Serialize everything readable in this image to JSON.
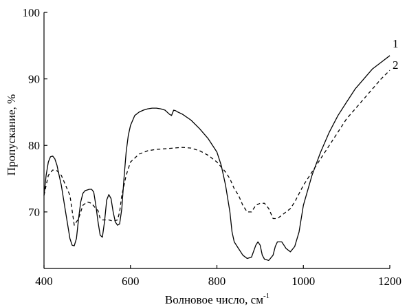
{
  "chart_data": {
    "type": "line",
    "xlabel": "Волновое число, см",
    "xlabel_superscript": "-1",
    "ylabel": "Пропускание, %",
    "xlim": [
      400,
      1200
    ],
    "ylim": [
      61.5,
      100
    ],
    "xticks": [
      400,
      600,
      800,
      1000,
      1200
    ],
    "yticks": [
      70,
      80,
      90,
      100
    ],
    "grid": false,
    "legend": "none",
    "series": [
      {
        "name": "1",
        "style": "solid",
        "color": "#000000",
        "x": [
          400,
          405,
          410,
          415,
          420,
          425,
          430,
          435,
          440,
          450,
          460,
          465,
          470,
          475,
          480,
          485,
          490,
          495,
          500,
          505,
          510,
          515,
          520,
          525,
          530,
          535,
          540,
          545,
          550,
          555,
          560,
          565,
          570,
          575,
          580,
          585,
          590,
          595,
          600,
          610,
          620,
          630,
          640,
          650,
          660,
          670,
          680,
          690,
          695,
          700,
          705,
          710,
          720,
          740,
          760,
          780,
          800,
          810,
          820,
          830,
          835,
          840,
          850,
          860,
          870,
          880,
          890,
          895,
          900,
          905,
          910,
          920,
          930,
          935,
          940,
          950,
          955,
          960,
          970,
          980,
          990,
          1000,
          1020,
          1040,
          1060,
          1080,
          1100,
          1120,
          1140,
          1160,
          1180,
          1200
        ],
        "y": [
          72.5,
          75.5,
          77.5,
          78.3,
          78.4,
          78.0,
          77.0,
          75.5,
          74.0,
          70.0,
          66.0,
          65.0,
          64.9,
          66.0,
          69.0,
          71.5,
          72.8,
          73.2,
          73.3,
          73.4,
          73.4,
          73.0,
          71.0,
          68.5,
          66.5,
          66.2,
          68.5,
          71.8,
          72.6,
          72.0,
          70.0,
          68.5,
          68.0,
          68.2,
          70.5,
          75.0,
          79.0,
          81.5,
          83.0,
          84.5,
          85.0,
          85.3,
          85.5,
          85.6,
          85.6,
          85.5,
          85.3,
          84.7,
          84.5,
          85.3,
          85.2,
          85.0,
          84.7,
          83.8,
          82.5,
          81.0,
          79.0,
          77.0,
          74.0,
          70.0,
          67.0,
          65.5,
          64.5,
          63.5,
          63.0,
          63.2,
          65.0,
          65.5,
          65.0,
          63.5,
          62.9,
          62.7,
          63.5,
          64.8,
          65.5,
          65.5,
          65.0,
          64.5,
          64.0,
          64.8,
          67.0,
          71.0,
          75.5,
          79.0,
          82.0,
          84.5,
          86.5,
          88.5,
          90.0,
          91.5,
          92.5,
          93.5
        ]
      },
      {
        "name": "2",
        "style": "dashed",
        "color": "#000000",
        "x": [
          400,
          410,
          420,
          430,
          440,
          450,
          460,
          470,
          480,
          490,
          500,
          510,
          520,
          525,
          530,
          535,
          540,
          550,
          560,
          570,
          575,
          580,
          590,
          600,
          620,
          640,
          660,
          680,
          700,
          720,
          740,
          760,
          780,
          800,
          820,
          830,
          840,
          850,
          860,
          870,
          880,
          890,
          900,
          910,
          920,
          930,
          940,
          950,
          960,
          970,
          980,
          1000,
          1020,
          1040,
          1060,
          1080,
          1100,
          1120,
          1140,
          1160,
          1180,
          1200
        ],
        "y": [
          72.5,
          75.5,
          76.3,
          76.2,
          75.5,
          74.0,
          72.5,
          68.0,
          69.0,
          71.0,
          71.5,
          71.3,
          70.5,
          70.2,
          69.0,
          68.8,
          68.8,
          68.8,
          68.6,
          68.8,
          70.0,
          72.5,
          75.5,
          77.5,
          78.7,
          79.2,
          79.4,
          79.5,
          79.6,
          79.7,
          79.6,
          79.2,
          78.5,
          77.5,
          76.0,
          75.0,
          73.5,
          72.5,
          71.0,
          70.0,
          70.0,
          71.0,
          71.3,
          71.3,
          70.5,
          69.0,
          69.0,
          69.5,
          70.0,
          70.5,
          71.5,
          74.0,
          76.0,
          78.0,
          80.0,
          82.0,
          84.0,
          85.5,
          87.0,
          88.5,
          90.0,
          91.3
        ]
      }
    ]
  }
}
